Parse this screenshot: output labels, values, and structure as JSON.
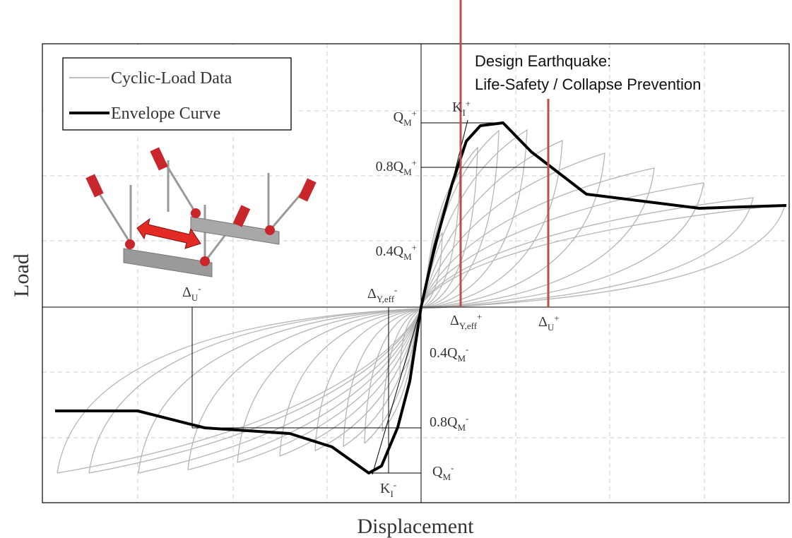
{
  "legend": {
    "items": [
      "Cyclic-Load Data",
      "Envelope Curve"
    ]
  },
  "axes": {
    "y_label": "Load",
    "x_label": "Displacement"
  },
  "annotation": {
    "lines": [
      "Design Earthquake:",
      "Life-Safety / Collapse Prevention"
    ]
  },
  "labels": [
    {
      "base": "Q",
      "sub": "M",
      "sup": "+"
    },
    {
      "base": "0.8Q",
      "sub": "M",
      "sup": "+"
    },
    {
      "base": "0.4Q",
      "sub": "M",
      "sup": "+"
    },
    {
      "base": "K",
      "sub": "I",
      "sup": "+"
    },
    {
      "base": "Δ",
      "sub": "U",
      "sup": "-"
    },
    {
      "base": "Δ",
      "sub": "Y,eff",
      "sup": "-"
    },
    {
      "base": "Δ",
      "sub": "Y,eff",
      "sup": "+"
    },
    {
      "base": "Δ",
      "sub": "U",
      "sup": "+"
    },
    {
      "base": "0.4Q",
      "sub": "M",
      "sup": "-"
    },
    {
      "base": "0.8Q",
      "sub": "M",
      "sup": "-"
    },
    {
      "base": "Q",
      "sub": "M",
      "sup": "-"
    },
    {
      "base": "K",
      "sub": "I",
      "sup": "-"
    }
  ]
}
